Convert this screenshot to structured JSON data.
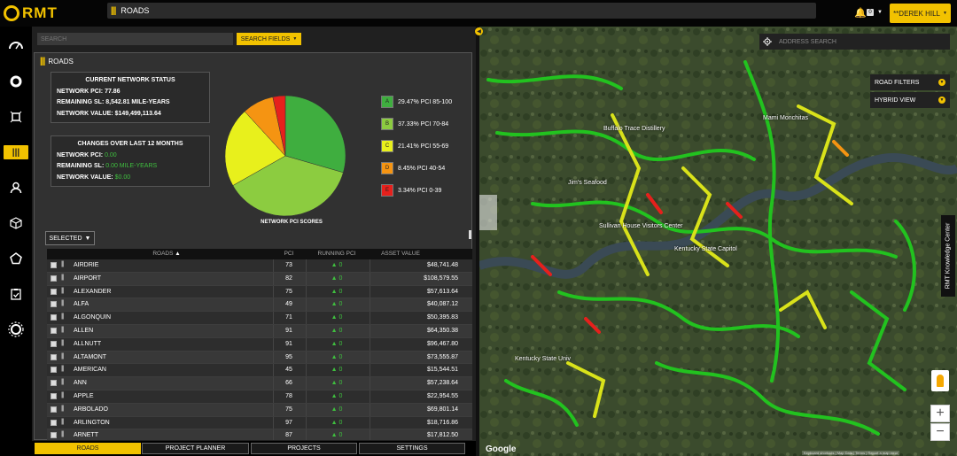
{
  "header": {
    "app_name": "RMT",
    "title": "ROADS",
    "notification_count": "0",
    "user_label": "**DEREK HILL"
  },
  "search": {
    "placeholder": "SEARCH",
    "fields_label": "SEARCH FIELDS"
  },
  "panel": {
    "title": "ROADS",
    "current_status": {
      "heading": "CURRENT NETWORK STATUS",
      "pci_label": "NETWORK PCI:",
      "pci_value": "77.86",
      "sl_label": "REMAINING SL:",
      "sl_value": "8,542.81 MILE-YEARS",
      "value_label": "NETWORK VALUE:",
      "value_value": "$149,499,113.64"
    },
    "changes": {
      "heading": "CHANGES OVER LAST 12 MONTHS",
      "pci_label": "NETWORK PCI:",
      "pci_value": "0.00",
      "sl_label": "REMAINING SL:",
      "sl_value": "0.00 MILE-YEARS",
      "value_label": "NETWORK VALUE:",
      "value_value": "$0.00"
    },
    "selected_label": "SELECTED"
  },
  "chart_data": {
    "type": "pie",
    "title": "NETWORK PCI SCORES",
    "slices": [
      {
        "grade": "A",
        "percent": 29.47,
        "label": "29.47% PCI 85-100",
        "color": "#3fae3f"
      },
      {
        "grade": "B",
        "percent": 37.33,
        "label": "37.33% PCI 70-84",
        "color": "#8ccc40"
      },
      {
        "grade": "C",
        "percent": 21.41,
        "label": "21.41% PCI 55-69",
        "color": "#e8f01c"
      },
      {
        "grade": "D",
        "percent": 8.45,
        "label": "8.45% PCI 40-54",
        "color": "#f59412"
      },
      {
        "grade": "E",
        "percent": 3.34,
        "label": "3.34% PCI 0-39",
        "color": "#e6201c"
      }
    ]
  },
  "table": {
    "headers": {
      "roads": "ROADS",
      "pci": "PCI",
      "running_pci": "RUNNING PCI",
      "asset_value": "ASSET VALUE"
    },
    "rows": [
      {
        "name": "AIRDRIE",
        "pci": "73",
        "running": "0",
        "value": "$48,741.48"
      },
      {
        "name": "AIRPORT",
        "pci": "82",
        "running": "0",
        "value": "$108,579.55"
      },
      {
        "name": "ALEXANDER",
        "pci": "75",
        "running": "0",
        "value": "$57,613.64"
      },
      {
        "name": "ALFA",
        "pci": "49",
        "running": "0",
        "value": "$40,087.12"
      },
      {
        "name": "ALGONQUIN",
        "pci": "71",
        "running": "0",
        "value": "$50,395.83"
      },
      {
        "name": "ALLEN",
        "pci": "91",
        "running": "0",
        "value": "$64,350.38"
      },
      {
        "name": "ALLNUTT",
        "pci": "91",
        "running": "0",
        "value": "$96,467.80"
      },
      {
        "name": "ALTAMONT",
        "pci": "95",
        "running": "0",
        "value": "$73,555.87"
      },
      {
        "name": "AMERICAN",
        "pci": "45",
        "running": "0",
        "value": "$15,544.51"
      },
      {
        "name": "ANN",
        "pci": "66",
        "running": "0",
        "value": "$57,238.64"
      },
      {
        "name": "APPLE",
        "pci": "78",
        "running": "0",
        "value": "$22,954.55"
      },
      {
        "name": "ARBOLADO",
        "pci": "75",
        "running": "0",
        "value": "$69,801.14"
      },
      {
        "name": "ARLINGTON",
        "pci": "97",
        "running": "0",
        "value": "$18,716.86"
      },
      {
        "name": "ARNETT",
        "pci": "87",
        "running": "0",
        "value": "$17,812.50"
      }
    ]
  },
  "bottom_tabs": {
    "roads": "ROADS",
    "planner": "PROJECT PLANNER",
    "projects": "PROJECTS",
    "settings": "SETTINGS"
  },
  "map": {
    "address_placeholder": "ADDRESS SEARCH",
    "road_filters": "ROAD FILTERS",
    "hybrid_view": "HYBRID VIEW",
    "knowledge_center": "RMT Knowledge Center",
    "zoom_in": "+",
    "zoom_out": "−",
    "google": "Google",
    "attribution": "Keyboard shortcuts | Map Data | Terms | Report a map error",
    "labels": [
      {
        "text": "Mami Monchitas"
      },
      {
        "text": "Buffalo Trace Distillery"
      },
      {
        "text": "Jim's Seafood"
      },
      {
        "text": "Sullivan House Visitors Center"
      },
      {
        "text": "Kentucky State Capitol"
      },
      {
        "text": "Kentucky State Univ"
      }
    ]
  }
}
